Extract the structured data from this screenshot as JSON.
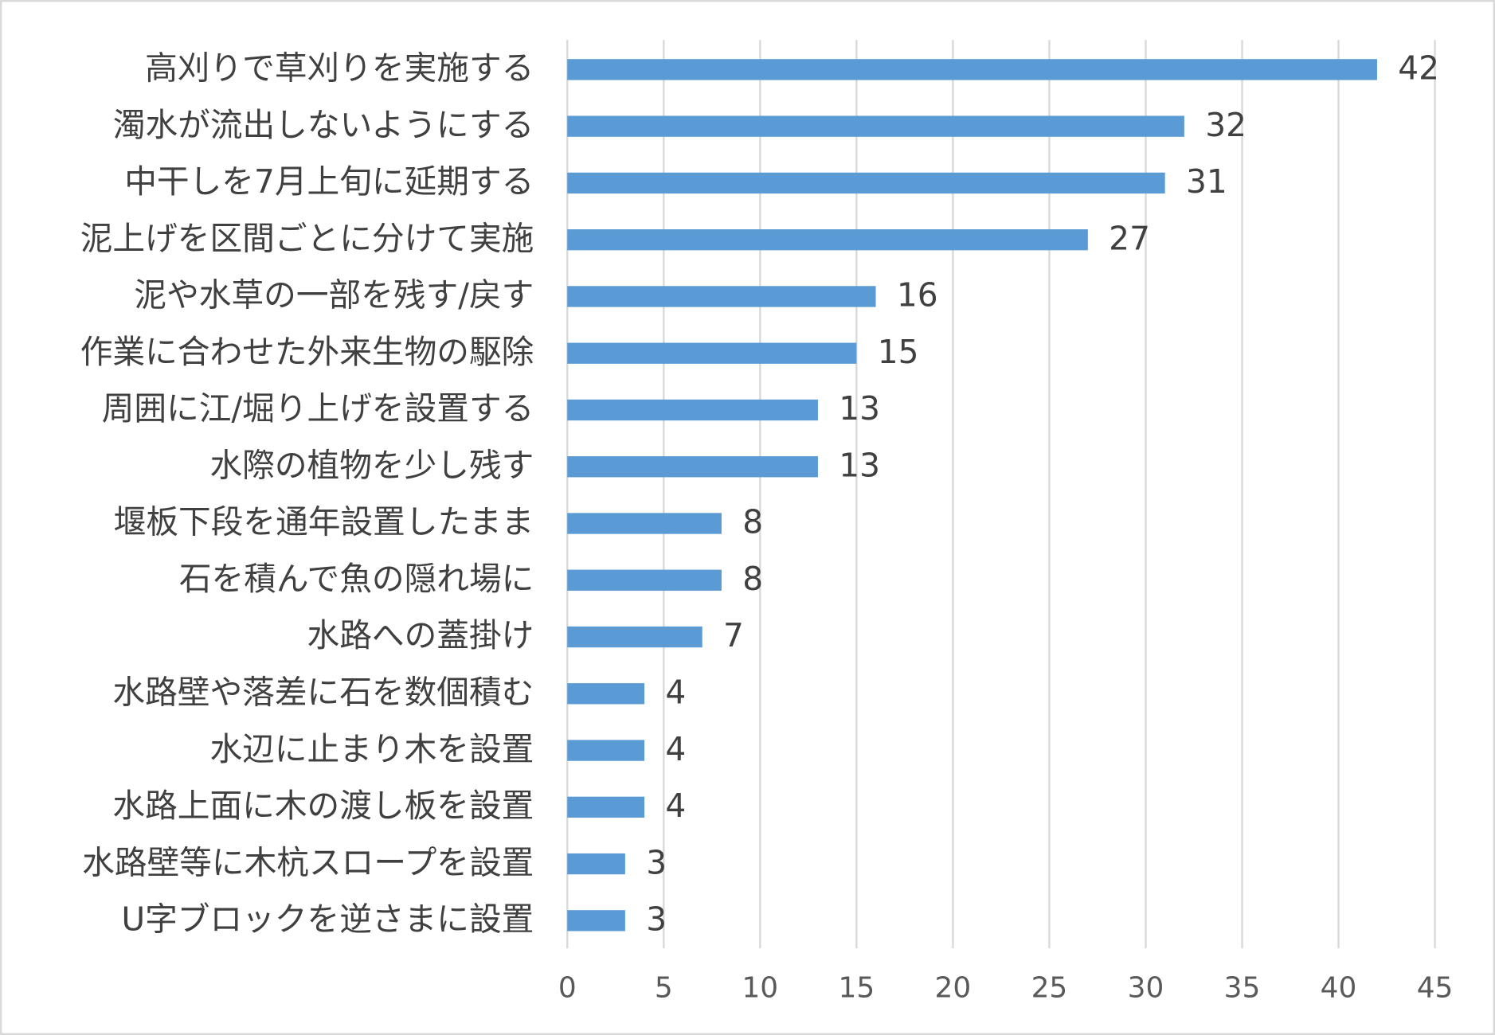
{
  "chart_data": {
    "type": "bar",
    "orientation": "horizontal",
    "categories": [
      "高刈りで草刈りを実施する",
      "濁水が流出しないようにする",
      "中干しを7月上旬に延期する",
      "泥上げを区間ごとに分けて実施",
      "泥や水草の一部を残す/戻す",
      "作業に合わせた外来生物の駆除",
      "周囲に江/堀り上げを設置する",
      "水際の植物を少し残す",
      "堰板下段を通年設置したまま",
      "石を積んで魚の隠れ場に",
      "水路への蓋掛け",
      "水路壁や落差に石を数個積む",
      "水辺に止まり木を設置",
      "水路上面に木の渡し板を設置",
      "水路壁等に木杭スロープを設置",
      "U字ブロックを逆さまに設置"
    ],
    "values": [
      42,
      32,
      31,
      27,
      16,
      15,
      13,
      13,
      8,
      8,
      7,
      4,
      4,
      4,
      3,
      3
    ],
    "color": "#5b9bd5",
    "xlim": [
      0,
      45
    ],
    "xticks": [
      0,
      5,
      10,
      15,
      20,
      25,
      30,
      35,
      40,
      45
    ],
    "grid": true
  }
}
